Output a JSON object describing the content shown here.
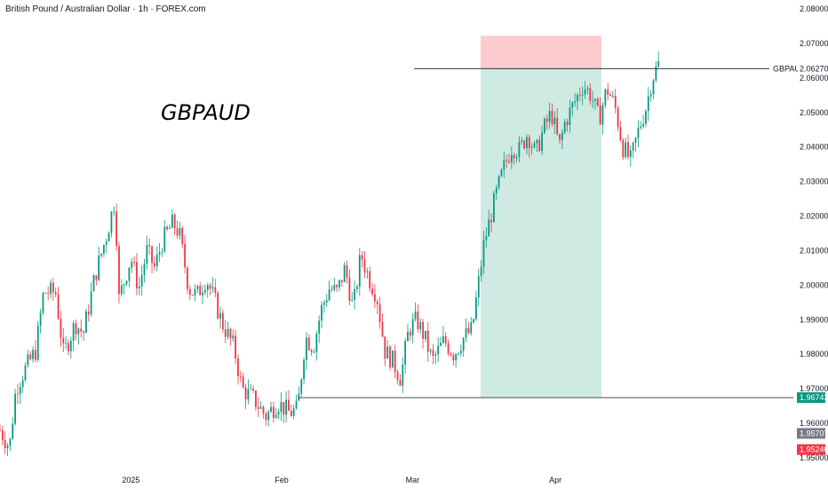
{
  "header": {
    "title": "British Pound / Australian Dollar · 1h · FOREX.com"
  },
  "chart_data": {
    "type": "candlestick",
    "symbol_label": "GBPAUD",
    "ylim": [
      1.95,
      2.08
    ],
    "y_ticks": [
      "2.08000",
      "2.07000",
      "2.06000",
      "2.05000",
      "2.04000",
      "2.03000",
      "2.02000",
      "2.01000",
      "2.00000",
      "1.99000",
      "1.98000",
      "1.97000",
      "1.96000",
      "1.95000"
    ],
    "x_ticks": [
      "2025",
      "Feb",
      "Mar",
      "Apr"
    ],
    "x_tick_positions": [
      0.165,
      0.355,
      0.52,
      0.7
    ],
    "line_label": "GBPAUD",
    "horizontal_lines": [
      {
        "value": 2.0627,
        "label": "2.06270",
        "color": "#131722"
      },
      {
        "value": 1.96743,
        "label": "1.96743",
        "color": "#089981"
      }
    ],
    "price_badges": [
      {
        "value": 1.95707,
        "label": "1.95707",
        "color": "#787b86"
      },
      {
        "value": 1.9524,
        "label": "1.95240",
        "color": "#f23645"
      }
    ],
    "position_tool": {
      "stop": 2.0722,
      "entry": 2.0627,
      "target": 1.96743,
      "stop_color": "#fccbcd",
      "target_color": "#cfeae3"
    },
    "price_path": [
      [
        0.0,
        1.958
      ],
      [
        0.012,
        1.953
      ],
      [
        0.02,
        1.97
      ],
      [
        0.03,
        1.975
      ],
      [
        0.045,
        1.981
      ],
      [
        0.055,
        1.998
      ],
      [
        0.07,
        1.998
      ],
      [
        0.08,
        1.98
      ],
      [
        0.095,
        1.989
      ],
      [
        0.105,
        1.986
      ],
      [
        0.12,
        2.003
      ],
      [
        0.135,
        2.015
      ],
      [
        0.145,
        2.025
      ],
      [
        0.15,
        1.996
      ],
      [
        0.165,
        2.008
      ],
      [
        0.175,
        1.999
      ],
      [
        0.185,
        2.01
      ],
      [
        0.195,
        2.005
      ],
      [
        0.205,
        2.013
      ],
      [
        0.218,
        2.018
      ],
      [
        0.226,
        2.015
      ],
      [
        0.238,
        1.999
      ],
      [
        0.248,
        1.997
      ],
      [
        0.26,
        2.002
      ],
      [
        0.27,
        1.996
      ],
      [
        0.28,
        1.989
      ],
      [
        0.295,
        1.982
      ],
      [
        0.305,
        1.97
      ],
      [
        0.32,
        1.967
      ],
      [
        0.335,
        1.962
      ],
      [
        0.35,
        1.966
      ],
      [
        0.365,
        1.963
      ],
      [
        0.375,
        1.964
      ],
      [
        0.385,
        1.985
      ],
      [
        0.395,
        1.982
      ],
      [
        0.405,
        1.993
      ],
      [
        0.415,
        1.999
      ],
      [
        0.425,
        1.998
      ],
      [
        0.435,
        2.005
      ],
      [
        0.445,
        1.993
      ],
      [
        0.455,
        2.009
      ],
      [
        0.465,
        2.002
      ],
      [
        0.475,
        1.997
      ],
      [
        0.485,
        1.981
      ],
      [
        0.495,
        1.978
      ],
      [
        0.505,
        1.973
      ],
      [
        0.515,
        1.987
      ],
      [
        0.525,
        1.99
      ],
      [
        0.535,
        1.985
      ],
      [
        0.545,
        1.978
      ],
      [
        0.56,
        1.984
      ],
      [
        0.572,
        1.98
      ],
      [
        0.585,
        1.985
      ],
      [
        0.595,
        1.987
      ],
      [
        0.61,
        2.012
      ],
      [
        0.625,
        2.026
      ],
      [
        0.635,
        2.034
      ],
      [
        0.645,
        2.04
      ],
      [
        0.655,
        2.039
      ],
      [
        0.665,
        2.044
      ],
      [
        0.675,
        2.038
      ],
      [
        0.685,
        2.045
      ],
      [
        0.695,
        2.05
      ],
      [
        0.705,
        2.04
      ],
      [
        0.712,
        2.047
      ],
      [
        0.722,
        2.052
      ],
      [
        0.735,
        2.058
      ],
      [
        0.745,
        2.055
      ],
      [
        0.755,
        2.048
      ],
      [
        0.765,
        2.057
      ],
      [
        0.775,
        2.052
      ],
      [
        0.785,
        2.04
      ],
      [
        0.795,
        2.036
      ],
      [
        0.805,
        2.045
      ],
      [
        0.815,
        2.052
      ],
      [
        0.822,
        2.06
      ],
      [
        0.83,
        2.064
      ]
    ]
  },
  "colors": {
    "up": "#089981",
    "down": "#f23645",
    "axis_text": "#131722"
  }
}
